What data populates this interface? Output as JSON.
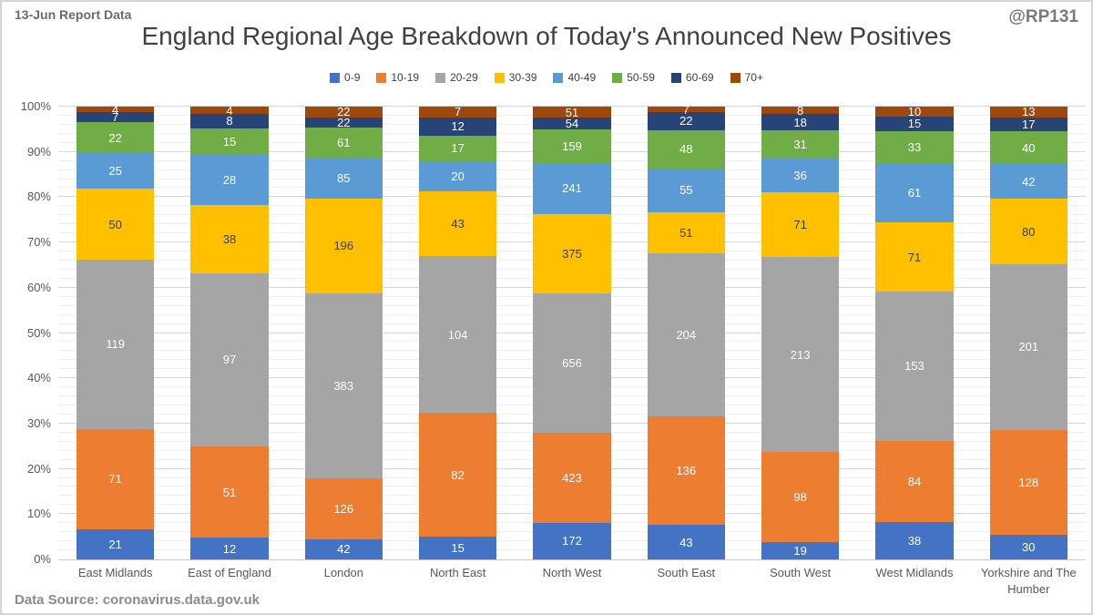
{
  "header": {
    "report_label": "13-Jun Report Data",
    "watermark": "@RP131"
  },
  "footer": {
    "data_source": "Data Source: coronavirus.data.gov.uk"
  },
  "chart_data": {
    "type": "bar",
    "subtype": "stacked-100-percent",
    "title": "England Regional Age Breakdown of Today's Announced New Positives",
    "legend_position": "top",
    "grid": "on",
    "categories": [
      "East Midlands",
      "East of England",
      "London",
      "North East",
      "North West",
      "South East",
      "South West",
      "West Midlands",
      "Yorkshire and The Humber"
    ],
    "series": [
      {
        "name": "0-9",
        "color": "#4472C4",
        "label_color": "#FFFFFF",
        "values": [
          21,
          12,
          42,
          15,
          172,
          43,
          19,
          38,
          30
        ]
      },
      {
        "name": "10-19",
        "color": "#ED7D31",
        "label_color": "#FFFFFF",
        "values": [
          71,
          51,
          126,
          82,
          423,
          136,
          98,
          84,
          128
        ]
      },
      {
        "name": "20-29",
        "color": "#A5A5A5",
        "label_color": "#FFFFFF",
        "values": [
          119,
          97,
          383,
          104,
          656,
          204,
          213,
          153,
          201
        ]
      },
      {
        "name": "30-39",
        "color": "#FFC000",
        "label_color": "#3F3F3F",
        "values": [
          50,
          38,
          196,
          43,
          375,
          51,
          71,
          71,
          80
        ]
      },
      {
        "name": "40-49",
        "color": "#5B9BD5",
        "label_color": "#FFFFFF",
        "values": [
          25,
          28,
          85,
          20,
          241,
          55,
          36,
          61,
          42
        ]
      },
      {
        "name": "50-59",
        "color": "#70AD47",
        "label_color": "#FFFFFF",
        "values": [
          22,
          15,
          61,
          17,
          159,
          48,
          31,
          33,
          40
        ]
      },
      {
        "name": "60-69",
        "color": "#264478",
        "label_color": "#FFFFFF",
        "values": [
          7,
          8,
          22,
          12,
          54,
          22,
          18,
          15,
          17
        ]
      },
      {
        "name": "70+",
        "color": "#9E480E",
        "label_color": "#FFFFFF",
        "values": [
          4,
          4,
          22,
          7,
          51,
          7,
          8,
          10,
          13
        ]
      }
    ],
    "y_axis": {
      "min": 0,
      "max": 100,
      "major_unit": 10,
      "minor_unit": 2,
      "ticks": [
        "0%",
        "10%",
        "20%",
        "30%",
        "40%",
        "50%",
        "60%",
        "70%",
        "80%",
        "90%",
        "100%"
      ]
    }
  }
}
